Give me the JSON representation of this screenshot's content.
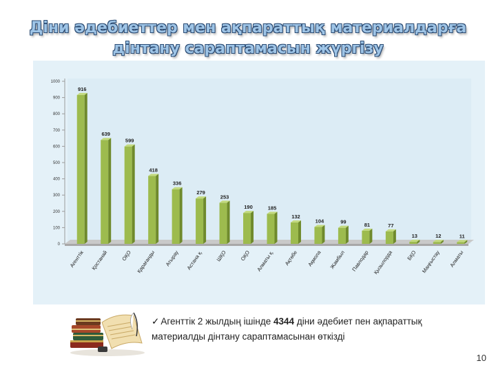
{
  "slide": {
    "title_line1": "Діни әдебиеттер мен ақпараттық материалдарға",
    "title_line2": "дінтану сараптамасын жүргізу",
    "caption_prefix": "Агенттік 2 жылдың ішінде",
    "caption_number": "4344",
    "caption_suffix": " діни әдебиет пен ақпараттық материалды дінтану сараптамасынан өткізді",
    "page_number": "10"
  },
  "colors": {
    "bar_fill": "#9dbb4e",
    "bar_side": "#6f8a2c",
    "bar_top": "#c3da7e",
    "panel_bg": "#e4f1f8",
    "title_fill": "#9ec4e6"
  },
  "chart_data": {
    "type": "bar",
    "title": "",
    "xlabel": "",
    "ylabel": "",
    "ylim": [
      0,
      1000
    ],
    "yticks": [
      "0",
      "100",
      "200",
      "300",
      "400",
      "500",
      "600",
      "700",
      "800",
      "900",
      "1000"
    ],
    "grid": false,
    "categories": [
      "Агенттік",
      "Қостанай",
      "ОҚО",
      "Қарағанды",
      "Атырау",
      "Астана қ.",
      "ШҚО",
      "ОҚО",
      "Алматы қ.",
      "Ақтөбе",
      "Ақмола",
      "Жамбыл",
      "Павлодар",
      "Қызылорда",
      "БҚО",
      "Маңғыстау",
      "Алматы"
    ],
    "values": [
      916,
      639,
      599,
      418,
      336,
      279,
      253,
      190,
      185,
      132,
      104,
      99,
      81,
      77,
      13,
      12,
      11
    ],
    "data_labels": [
      "916",
      "639",
      "599",
      "418",
      "336",
      "279",
      "253",
      "190",
      "185",
      "132",
      "104",
      "99",
      "81",
      "77",
      "13",
      "12",
      "11"
    ]
  }
}
